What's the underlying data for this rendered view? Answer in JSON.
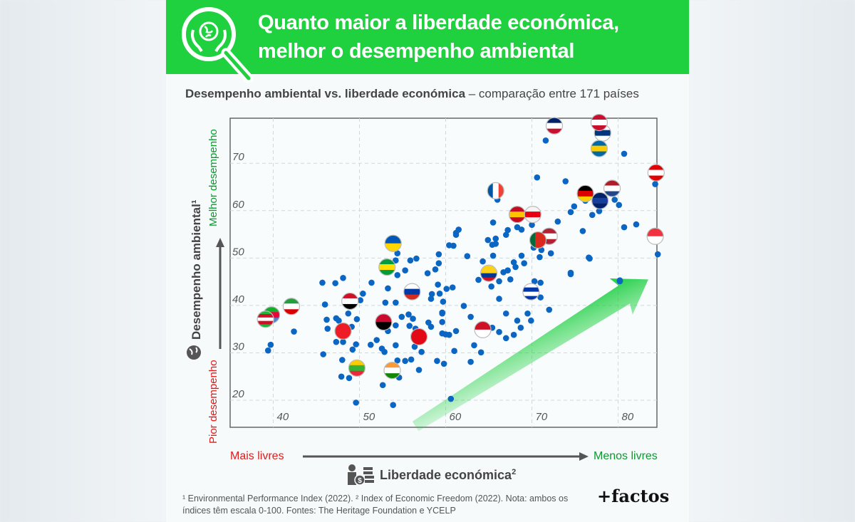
{
  "header": {
    "title_line1": "Quanto maior a liberdade económica,",
    "title_line2": "melhor o desempenho ambiental",
    "icon": "magnifier-globe-hands-icon"
  },
  "subtitle": {
    "bold": "Desempenho ambiental vs. liberdade económica",
    "rest": " – comparação entre 171 países"
  },
  "axes": {
    "y_title": "Desempenho ambiental¹",
    "y_best": "Melhor desempenho",
    "y_worst": "Pior desempenho",
    "x_left": "Mais livres",
    "x_right": "Menos livres",
    "x_title": "Liberdade económica",
    "x_title_sup": "2"
  },
  "footnote": {
    "line1": "¹ Environmental Performance Index (2022). ² Index of Economic Freedom (2022). Nota: ambos os",
    "line2": "índices têm escala 0-100. Fontes: The Heritage Foundation e YCELP"
  },
  "brand": "+factos",
  "colors": {
    "header": "#1fd13f",
    "dot": "#0a66c2",
    "good": "#0a9a2e",
    "bad": "#e01b1b"
  },
  "chart_data": {
    "type": "scatter",
    "title": "Desempenho ambiental vs. liberdade económica",
    "xlabel": "Liberdade económica²",
    "ylabel": "Desempenho ambiental¹",
    "xlim": [
      35,
      84.5
    ],
    "ylim": [
      14.3,
      79.5
    ],
    "xticks": [
      40,
      50,
      60,
      70,
      80
    ],
    "yticks": [
      20,
      30,
      40,
      50,
      60,
      70
    ],
    "grid": true,
    "trend_arrow": {
      "from": [
        56.5,
        14.5
      ],
      "to": [
        83.5,
        45.5
      ]
    },
    "flags": [
      {
        "country": "united-kingdom",
        "x": 72.6,
        "y": 77.9,
        "stripes": [
          "#012169",
          "#ffffff",
          "#c8102e"
        ],
        "dir": "h"
      },
      {
        "country": "finland",
        "x": 78.2,
        "y": 76.4,
        "stripes": [
          "#ffffff",
          "#003580",
          "#ffffff"
        ],
        "dir": "h"
      },
      {
        "country": "denmark",
        "x": 77.8,
        "y": 78.6,
        "stripes": [
          "#c8102e",
          "#ffffff",
          "#c8102e"
        ],
        "dir": "h"
      },
      {
        "country": "sweden",
        "x": 77.8,
        "y": 73.1,
        "stripes": [
          "#006aa7",
          "#fecc00",
          "#006aa7"
        ],
        "dir": "h"
      },
      {
        "country": "switzerland",
        "x": 84.4,
        "y": 68.0,
        "stripes": [
          "#e00000",
          "#ffffff",
          "#e00000"
        ],
        "dir": "h"
      },
      {
        "country": "france",
        "x": 65.8,
        "y": 64.2,
        "stripes": [
          "#0055a4",
          "#ffffff",
          "#ef4135"
        ],
        "dir": "v"
      },
      {
        "country": "germany",
        "x": 76.2,
        "y": 63.6,
        "stripes": [
          "#000000",
          "#dd0000",
          "#ffce00"
        ],
        "dir": "h"
      },
      {
        "country": "australia",
        "x": 77.9,
        "y": 62.1,
        "stripes": [
          "#012169",
          "#1a3f9b",
          "#012169"
        ],
        "dir": "h"
      },
      {
        "country": "netherlands",
        "x": 79.3,
        "y": 64.7,
        "stripes": [
          "#ae1c28",
          "#ffffff",
          "#21468b"
        ],
        "dir": "h"
      },
      {
        "country": "spain",
        "x": 68.3,
        "y": 59.2,
        "stripes": [
          "#c60b1e",
          "#ffc400",
          "#c60b1e"
        ],
        "dir": "h"
      },
      {
        "country": "japan",
        "x": 70.1,
        "y": 59.2,
        "stripes": [
          "#f4f4f4",
          "#e60012",
          "#f4f4f4"
        ],
        "dir": "h"
      },
      {
        "country": "united-states",
        "x": 72.0,
        "y": 54.6,
        "stripes": [
          "#b22234",
          "#ffffff",
          "#b22234"
        ],
        "dir": "h"
      },
      {
        "country": "portugal",
        "x": 70.7,
        "y": 53.8,
        "stripes": [
          "#046a38",
          "#da291c",
          "#da291c"
        ],
        "dir": "v"
      },
      {
        "country": "singapore",
        "x": 84.3,
        "y": 54.6,
        "stripes": [
          "#ef3340",
          "#ffffff"
        ],
        "dir": "h"
      },
      {
        "country": "colombia",
        "x": 65.0,
        "y": 46.8,
        "stripes": [
          "#fcd116",
          "#fcd116",
          "#003893",
          "#ce1126"
        ],
        "dir": "h"
      },
      {
        "country": "uruguay",
        "x": 69.9,
        "y": 42.9,
        "stripes": [
          "#ffffff",
          "#0038a8",
          "#ffffff",
          "#0038a8"
        ],
        "dir": "h"
      },
      {
        "country": "ukraine",
        "x": 53.9,
        "y": 53.1,
        "stripes": [
          "#0057b7",
          "#ffd700"
        ],
        "dir": "h"
      },
      {
        "country": "brazil",
        "x": 53.2,
        "y": 48.1,
        "stripes": [
          "#009c3b",
          "#ffdf00",
          "#009c3b"
        ],
        "dir": "h"
      },
      {
        "country": "russia",
        "x": 56.1,
        "y": 42.9,
        "stripes": [
          "#ffffff",
          "#0039a6",
          "#d52b1e"
        ],
        "dir": "h"
      },
      {
        "country": "egypt",
        "x": 48.9,
        "y": 40.9,
        "stripes": [
          "#ce1126",
          "#ffffff",
          "#000000"
        ],
        "dir": "h"
      },
      {
        "country": "iran",
        "x": 42.1,
        "y": 39.8,
        "stripes": [
          "#239f40",
          "#ffffff",
          "#da0000"
        ],
        "dir": "h"
      },
      {
        "country": "eritrea",
        "x": 39.8,
        "y": 38.0,
        "stripes": [
          "#12ad2b",
          "#ea0437",
          "#4189dd"
        ],
        "dir": "h"
      },
      {
        "country": "burundi",
        "x": 39.1,
        "y": 37.1,
        "stripes": [
          "#1eb53a",
          "#ce1126",
          "#ffffff",
          "#ce1126",
          "#1eb53a"
        ],
        "dir": "h"
      },
      {
        "country": "angola",
        "x": 52.8,
        "y": 36.5,
        "stripes": [
          "#cc092f",
          "#000000"
        ],
        "dir": "h"
      },
      {
        "country": "china",
        "x": 48.1,
        "y": 34.6,
        "stripes": [
          "#ee1c25"
        ],
        "dir": "h"
      },
      {
        "country": "indonesia",
        "x": 64.3,
        "y": 34.9,
        "stripes": [
          "#ce1126",
          "#ffffff"
        ],
        "dir": "h"
      },
      {
        "country": "turkey",
        "x": 56.9,
        "y": 33.4,
        "stripes": [
          "#e30a17"
        ],
        "dir": "h"
      },
      {
        "country": "myanmar",
        "x": 49.7,
        "y": 26.8,
        "stripes": [
          "#fecb00",
          "#34b233",
          "#ea2839"
        ],
        "dir": "h"
      },
      {
        "country": "india",
        "x": 53.8,
        "y": 26.3,
        "stripes": [
          "#ff9933",
          "#ffffff",
          "#138808"
        ],
        "dir": "h"
      }
    ],
    "points": [
      [
        45.7,
        44.8
      ],
      [
        47.2,
        44.7
      ],
      [
        48.1,
        45.8
      ],
      [
        51.4,
        44.8
      ],
      [
        46.0,
        40.2
      ],
      [
        46.2,
        37.0
      ],
      [
        46.3,
        35.1
      ],
      [
        47.3,
        37.3
      ],
      [
        47.6,
        36.8
      ],
      [
        48.7,
        38.3
      ],
      [
        49.1,
        35.5
      ],
      [
        49.7,
        37.1
      ],
      [
        50.4,
        42.5
      ],
      [
        50.1,
        41.1
      ],
      [
        47.3,
        32.3
      ],
      [
        48.1,
        32.3
      ],
      [
        49.2,
        30.7
      ],
      [
        49.6,
        31.8
      ],
      [
        45.8,
        29.7
      ],
      [
        48.0,
        28.5
      ],
      [
        47.9,
        25.0
      ],
      [
        48.8,
        24.7
      ],
      [
        49.6,
        19.5
      ],
      [
        42.4,
        34.5
      ],
      [
        39.7,
        31.7
      ],
      [
        39.4,
        30.5
      ],
      [
        52.7,
        23.2
      ],
      [
        53.9,
        19.0
      ],
      [
        51.3,
        31.7
      ],
      [
        52.0,
        32.7
      ],
      [
        52.6,
        30.9
      ],
      [
        52.9,
        30.2
      ],
      [
        54.2,
        31.6
      ],
      [
        54.4,
        28.4
      ],
      [
        55.3,
        28.3
      ],
      [
        56.0,
        28.6
      ],
      [
        56.9,
        26.4
      ],
      [
        54.6,
        24.8
      ],
      [
        53.3,
        43.6
      ],
      [
        53.0,
        40.6
      ],
      [
        54.2,
        40.6
      ],
      [
        54.2,
        35.8
      ],
      [
        53.3,
        34.6
      ],
      [
        54.9,
        37.6
      ],
      [
        55.7,
        38.1
      ],
      [
        56.2,
        37.2
      ],
      [
        55.8,
        35.7
      ],
      [
        58.0,
        36.4
      ],
      [
        58.3,
        35.5
      ],
      [
        56.5,
        35.1
      ],
      [
        56.4,
        31.3
      ],
      [
        57.2,
        30.2
      ],
      [
        59.0,
        28.3
      ],
      [
        59.8,
        27.7
      ],
      [
        59.6,
        34.1
      ],
      [
        60.0,
        33.9
      ],
      [
        59.6,
        36.5
      ],
      [
        59.6,
        38.5
      ],
      [
        59.7,
        40.8
      ],
      [
        58.4,
        42.4
      ],
      [
        59.3,
        42.5
      ],
      [
        60.1,
        43.5
      ],
      [
        60.8,
        43.8
      ],
      [
        54.4,
        46.4
      ],
      [
        55.3,
        47.4
      ],
      [
        54.2,
        49.5
      ],
      [
        54.4,
        51.0
      ],
      [
        55.9,
        49.5
      ],
      [
        56.6,
        49.9
      ],
      [
        57.9,
        46.8
      ],
      [
        58.8,
        47.6
      ],
      [
        59.2,
        48.9
      ],
      [
        59.2,
        50.8
      ],
      [
        60.6,
        20.3
      ],
      [
        61.0,
        30.4
      ],
      [
        71.6,
        74.8
      ],
      [
        80.7,
        72.0
      ],
      [
        70.6,
        67.0
      ],
      [
        73.9,
        66.2
      ],
      [
        84.3,
        65.6
      ],
      [
        66.0,
        62.3
      ],
      [
        76.2,
        62.1
      ],
      [
        79.6,
        62.3
      ],
      [
        80.1,
        61.2
      ],
      [
        74.9,
        60.9
      ],
      [
        74.5,
        59.7
      ],
      [
        77.0,
        59.1
      ],
      [
        77.8,
        59.9
      ],
      [
        73.0,
        57.7
      ],
      [
        70.0,
        57.0
      ],
      [
        65.5,
        57.5
      ],
      [
        61.5,
        56.0
      ],
      [
        61.2,
        55.3
      ],
      [
        60.4,
        52.7
      ],
      [
        64.9,
        53.8
      ],
      [
        65.8,
        54.1
      ],
      [
        65.8,
        53.0
      ],
      [
        67.0,
        54.9
      ],
      [
        67.2,
        55.9
      ],
      [
        68.3,
        56.5
      ],
      [
        68.8,
        56.0
      ],
      [
        75.9,
        55.7
      ],
      [
        80.7,
        56.5
      ],
      [
        82.1,
        57.1
      ],
      [
        84.6,
        50.8
      ],
      [
        76.7,
        49.9
      ],
      [
        72.2,
        51.0
      ],
      [
        70.9,
        50.2
      ],
      [
        71.1,
        51.7
      ],
      [
        70.2,
        52.2
      ],
      [
        68.8,
        50.5
      ],
      [
        65.5,
        50.5
      ],
      [
        64.3,
        49.3
      ],
      [
        68.1,
        48.1
      ],
      [
        66.7,
        47.0
      ],
      [
        67.5,
        45.5
      ],
      [
        63.8,
        45.4
      ],
      [
        74.5,
        46.6
      ],
      [
        80.2,
        45.3
      ],
      [
        71.0,
        44.8
      ],
      [
        65.3,
        44.0
      ],
      [
        74.5,
        46.9
      ],
      [
        72.0,
        39.1
      ],
      [
        76.6,
        50.1
      ],
      [
        80.2,
        45.1
      ],
      [
        66.2,
        41.4
      ],
      [
        67.0,
        38.3
      ],
      [
        68.3,
        36.8
      ],
      [
        67.9,
        33.8
      ],
      [
        68.7,
        35.3
      ],
      [
        66.2,
        34.4
      ],
      [
        62.9,
        37.6
      ],
      [
        62.1,
        39.9
      ],
      [
        61.2,
        34.6
      ],
      [
        63.3,
        31.6
      ],
      [
        64.1,
        30.1
      ],
      [
        62.9,
        28.1
      ],
      [
        65.4,
        35.3
      ],
      [
        67.0,
        33.1
      ],
      [
        69.5,
        38.3
      ],
      [
        69.9,
        36.8
      ],
      [
        59.6,
        38.3
      ],
      [
        60.4,
        33.8
      ],
      [
        58.3,
        41.4
      ],
      [
        59.1,
        44.4
      ],
      [
        60.9,
        52.6
      ],
      [
        61.2,
        54.9
      ],
      [
        62.5,
        50.4
      ],
      [
        66.2,
        45.1
      ],
      [
        67.2,
        47.4
      ],
      [
        69.1,
        48.9
      ],
      [
        70.3,
        45.1
      ],
      [
        71.0,
        41.7
      ],
      [
        65.4,
        52.8
      ],
      [
        67.9,
        49.1
      ]
    ]
  }
}
